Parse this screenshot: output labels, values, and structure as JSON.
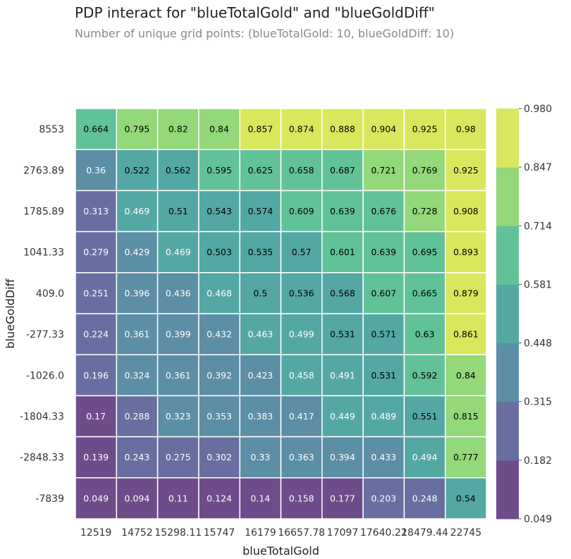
{
  "chart_data": {
    "type": "heatmap",
    "title": "PDP interact for \"blueTotalGold\" and \"blueGoldDiff\"",
    "subtitle": "Number of unique grid points: (blueTotalGold: 10, blueGoldDiff: 10)",
    "xlabel": "blueTotalGold",
    "ylabel": "blueGoldDiff",
    "x_categories": [
      "12519",
      "14752",
      "15298.11",
      "15747",
      "16179",
      "16657.78",
      "17097",
      "17640.22",
      "18479.44",
      "22745"
    ],
    "y_categories": [
      "8553",
      "2763.89",
      "1785.89",
      "1041.33",
      "409.0",
      "-277.33",
      "-1026.0",
      "-1804.33",
      "-2848.33",
      "-7839"
    ],
    "values": [
      [
        0.664,
        0.795,
        0.82,
        0.84,
        0.857,
        0.874,
        0.888,
        0.904,
        0.925,
        0.98
      ],
      [
        0.36,
        0.522,
        0.562,
        0.595,
        0.625,
        0.658,
        0.687,
        0.721,
        0.769,
        0.925
      ],
      [
        0.313,
        0.469,
        0.51,
        0.543,
        0.574,
        0.609,
        0.639,
        0.676,
        0.728,
        0.908
      ],
      [
        0.279,
        0.429,
        0.469,
        0.503,
        0.535,
        0.57,
        0.601,
        0.639,
        0.695,
        0.893
      ],
      [
        0.251,
        0.396,
        0.436,
        0.468,
        0.5,
        0.536,
        0.568,
        0.607,
        0.665,
        0.879
      ],
      [
        0.224,
        0.361,
        0.399,
        0.432,
        0.463,
        0.499,
        0.531,
        0.571,
        0.63,
        0.861
      ],
      [
        0.196,
        0.324,
        0.361,
        0.392,
        0.423,
        0.458,
        0.491,
        0.531,
        0.592,
        0.84
      ],
      [
        0.17,
        0.288,
        0.323,
        0.353,
        0.383,
        0.417,
        0.449,
        0.489,
        0.551,
        0.815
      ],
      [
        0.139,
        0.243,
        0.275,
        0.302,
        0.33,
        0.363,
        0.394,
        0.433,
        0.494,
        0.777
      ],
      [
        0.049,
        0.094,
        0.11,
        0.124,
        0.14,
        0.158,
        0.177,
        0.203,
        0.248,
        0.54
      ]
    ],
    "colorbar": {
      "ticks": [
        "0.980",
        "0.847",
        "0.714",
        "0.581",
        "0.448",
        "0.315",
        "0.182",
        "0.049"
      ],
      "range": [
        0.049,
        0.98
      ],
      "colors": [
        "#fde725",
        "#a0da39",
        "#4ac16d",
        "#1fa187",
        "#277f8e",
        "#365c8d",
        "#46327e",
        "#440154"
      ]
    },
    "dark_text_threshold": 0.5
  }
}
